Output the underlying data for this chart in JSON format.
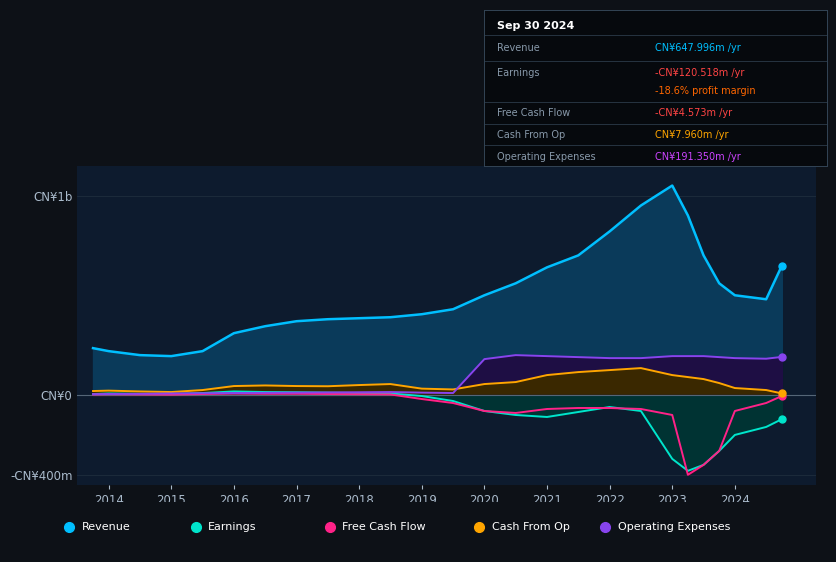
{
  "bg_color": "#0d1117",
  "plot_bg_color": "#0d1b2e",
  "grid_color": "#1e2d3d",
  "ylabel_text": "CN¥1b",
  "ylabel_neg": "-CN¥400m",
  "y0_label": "CN¥0",
  "x_years": [
    2013.75,
    2014,
    2014.5,
    2015,
    2015.5,
    2016,
    2016.5,
    2017,
    2017.5,
    2018,
    2018.5,
    2019,
    2019.5,
    2020,
    2020.5,
    2021,
    2021.5,
    2022,
    2022.5,
    2023,
    2023.25,
    2023.5,
    2023.75,
    2024,
    2024.5,
    2024.75
  ],
  "revenue": [
    235,
    220,
    200,
    195,
    220,
    310,
    345,
    370,
    380,
    385,
    390,
    405,
    430,
    500,
    560,
    640,
    700,
    820,
    950,
    1050,
    900,
    700,
    560,
    500,
    480,
    648
  ],
  "earnings": [
    5,
    8,
    6,
    5,
    10,
    18,
    15,
    14,
    12,
    10,
    8,
    -5,
    -30,
    -80,
    -100,
    -110,
    -85,
    -60,
    -80,
    -320,
    -380,
    -350,
    -280,
    -200,
    -160,
    -121
  ],
  "free_cash_flow": [
    3,
    4,
    3,
    2,
    5,
    7,
    6,
    6,
    5,
    4,
    3,
    -20,
    -40,
    -80,
    -90,
    -70,
    -65,
    -65,
    -70,
    -100,
    -400,
    -350,
    -280,
    -80,
    -40,
    -5
  ],
  "cash_from_op": [
    20,
    22,
    18,
    15,
    25,
    45,
    48,
    45,
    44,
    50,
    55,
    32,
    28,
    55,
    65,
    100,
    115,
    125,
    135,
    100,
    90,
    80,
    60,
    35,
    25,
    8
  ],
  "operating_expenses": [
    4,
    5,
    6,
    8,
    9,
    10,
    11,
    12,
    13,
    14,
    15,
    12,
    10,
    180,
    200,
    195,
    190,
    185,
    185,
    195,
    195,
    195,
    190,
    185,
    182,
    191
  ],
  "revenue_color": "#00bfff",
  "earnings_color": "#00e5cc",
  "fcf_color": "#ff2288",
  "cashop_color": "#ffa500",
  "opex_color": "#8844ee",
  "revenue_fill": "#0a3a5a",
  "earnings_fill": "#003333",
  "fcf_fill": "#4a0020",
  "cashop_fill": "#3a2800",
  "opex_fill": "#1e0e44",
  "info_box": {
    "date": "Sep 30 2024",
    "revenue_label": "Revenue",
    "revenue_value": "CN¥647.996m /yr",
    "revenue_color": "#00bfff",
    "earnings_label": "Earnings",
    "earnings_value": "-CN¥120.518m /yr",
    "earnings_color": "#ff4444",
    "margin_value": "-18.6% profit margin",
    "margin_color": "#ff6600",
    "fcf_label": "Free Cash Flow",
    "fcf_value": "-CN¥4.573m /yr",
    "fcf_color": "#ff4444",
    "cashop_label": "Cash From Op",
    "cashop_value": "CN¥7.960m /yr",
    "cashop_color": "#ffa500",
    "opex_label": "Operating Expenses",
    "opex_value": "CN¥191.350m /yr",
    "opex_color": "#cc44ff"
  },
  "legend": [
    {
      "label": "Revenue",
      "color": "#00bfff"
    },
    {
      "label": "Earnings",
      "color": "#00e5cc"
    },
    {
      "label": "Free Cash Flow",
      "color": "#ff2288"
    },
    {
      "label": "Cash From Op",
      "color": "#ffa500"
    },
    {
      "label": "Operating Expenses",
      "color": "#8844ee"
    }
  ],
  "ylim": [
    -450,
    1150
  ],
  "xlim": [
    2013.5,
    2025.3
  ]
}
